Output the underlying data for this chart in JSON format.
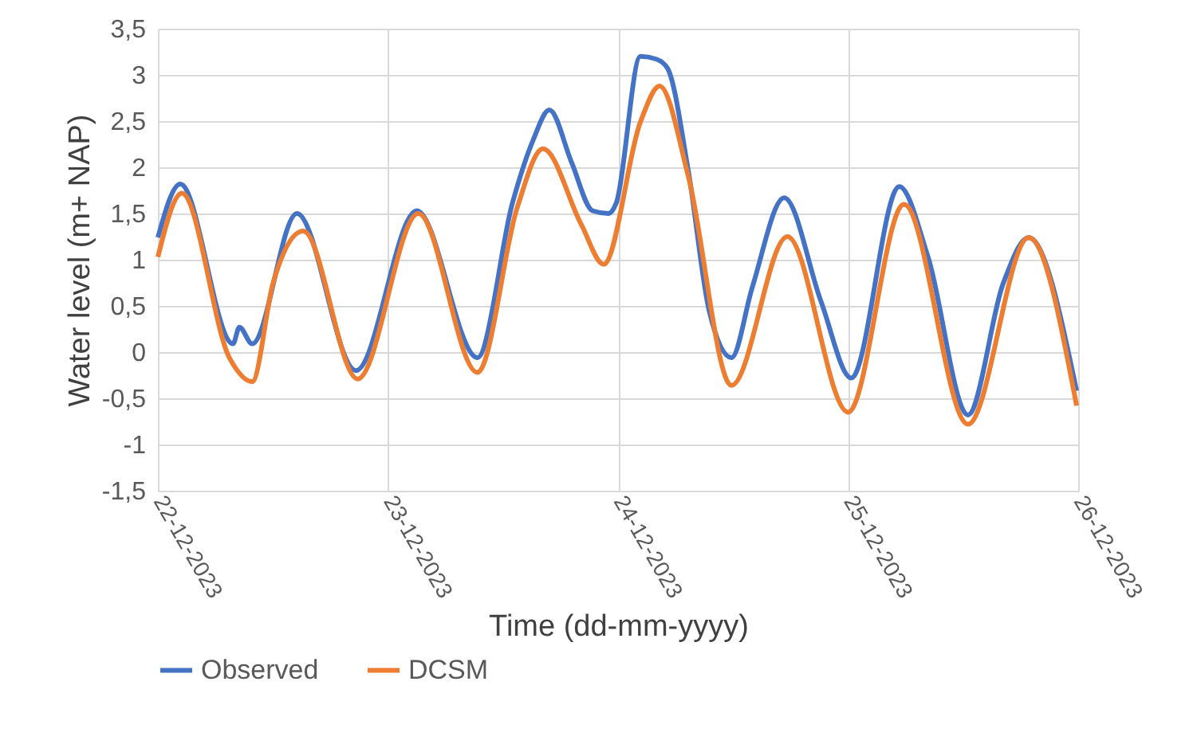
{
  "chart_data": {
    "type": "line",
    "xlabel": "Time (dd-mm-yyyy)",
    "ylabel": "Water level (m+ NAP)",
    "xlim": [
      "2023-12-22",
      "2023-12-26"
    ],
    "xticks": [
      {
        "value": "2023-12-22",
        "label": "22-12-2023"
      },
      {
        "value": "2023-12-23",
        "label": "23-12-2023"
      },
      {
        "value": "2023-12-24",
        "label": "24-12-2023"
      },
      {
        "value": "2023-12-25",
        "label": "25-12-2023"
      },
      {
        "value": "2023-12-26",
        "label": "26-12-2023"
      }
    ],
    "ylim": [
      -1.5,
      3.5
    ],
    "yticks": [
      {
        "value": -1.5,
        "label": "-1,5"
      },
      {
        "value": -1,
        "label": "-1"
      },
      {
        "value": -0.5,
        "label": "-0,5"
      },
      {
        "value": 0,
        "label": "0"
      },
      {
        "value": 0.5,
        "label": "0,5"
      },
      {
        "value": 1,
        "label": "1"
      },
      {
        "value": 1.5,
        "label": "1,5"
      },
      {
        "value": 2,
        "label": "2"
      },
      {
        "value": 2.5,
        "label": "2,5"
      },
      {
        "value": 3,
        "label": "3"
      },
      {
        "value": 3.5,
        "label": "3,5"
      }
    ],
    "grid": true,
    "legend": "bottom",
    "line_style": "solid",
    "marker": "none",
    "series": [
      {
        "name": "Observed",
        "color": "#4472c4",
        "x": [
          "2023-12-22T00:00",
          "2023-12-22T02:20",
          "2023-12-22T07:50",
          "2023-12-22T08:30",
          "2023-12-22T09:50",
          "2023-12-22T14:30",
          "2023-12-22T20:40",
          "2023-12-23T03:00",
          "2023-12-23T09:20",
          "2023-12-23T13:00",
          "2023-12-23T15:10",
          "2023-12-23T16:50",
          "2023-12-23T19:10",
          "2023-12-23T21:20",
          "2023-12-23T23:00",
          "2023-12-23T23:50",
          "2023-12-24T02:20",
          "2023-12-24T04:00",
          "2023-12-24T05:10",
          "2023-12-24T07:20",
          "2023-12-24T09:30",
          "2023-12-24T11:50",
          "2023-12-24T14:00",
          "2023-12-24T17:20",
          "2023-12-24T21:10",
          "2023-12-25T00:20",
          "2023-12-25T05:20",
          "2023-12-25T08:20",
          "2023-12-25T12:30",
          "2023-12-25T16:10",
          "2023-12-25T18:50",
          "2023-12-25T23:50"
        ],
        "values": [
          1.24,
          1.82,
          0.09,
          0.27,
          0.09,
          1.5,
          -0.2,
          1.53,
          -0.06,
          1.62,
          2.3,
          2.62,
          2.05,
          1.53,
          1.5,
          1.62,
          3.2,
          3.17,
          3.07,
          1.96,
          0.45,
          -0.06,
          0.7,
          1.67,
          0.55,
          -0.28,
          1.79,
          1.03,
          -0.68,
          0.74,
          1.24,
          -0.42
        ]
      },
      {
        "name": "DCSM",
        "color": "#ed7d31",
        "x": [
          "2023-12-22T00:00",
          "2023-12-22T02:30",
          "2023-12-22T07:30",
          "2023-12-22T09:50",
          "2023-12-22T12:00",
          "2023-12-22T15:10",
          "2023-12-22T20:50",
          "2023-12-23T03:10",
          "2023-12-23T09:20",
          "2023-12-23T13:30",
          "2023-12-23T16:10",
          "2023-12-23T20:10",
          "2023-12-23T22:30",
          "2023-12-24T02:20",
          "2023-12-24T04:20",
          "2023-12-24T07:20",
          "2023-12-24T11:50",
          "2023-12-24T17:40",
          "2023-12-25T00:00",
          "2023-12-25T05:50",
          "2023-12-25T12:30",
          "2023-12-25T18:50",
          "2023-12-25T23:50"
        ],
        "values": [
          1.03,
          1.72,
          -0.07,
          -0.32,
          0.74,
          1.31,
          -0.29,
          1.5,
          -0.22,
          1.57,
          2.2,
          1.38,
          0.95,
          2.49,
          2.88,
          1.9,
          -0.36,
          1.25,
          -0.65,
          1.6,
          -0.78,
          1.24,
          -0.58
        ]
      }
    ]
  }
}
